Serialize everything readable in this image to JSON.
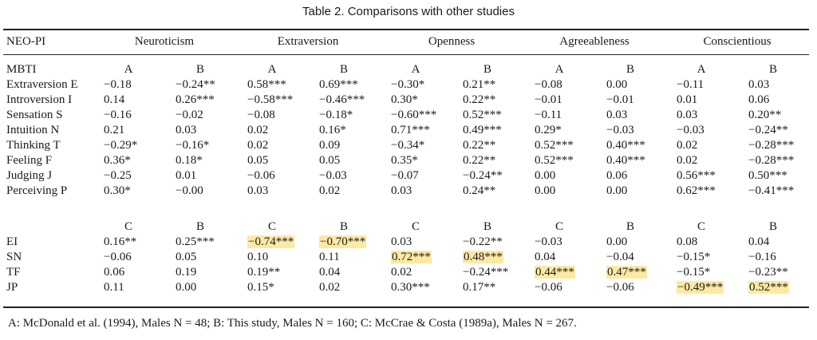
{
  "caption": "Table 2. Comparisons with other studies",
  "header": {
    "row_label": "NEO-PI",
    "factors": [
      "Neuroticism",
      "Extraversion",
      "Openness",
      "Agreeableness",
      "Conscientious"
    ]
  },
  "section1": {
    "label": "MBTI",
    "subcols": [
      "A",
      "B",
      "A",
      "B",
      "A",
      "B",
      "A",
      "B",
      "A",
      "B"
    ],
    "rows": [
      {
        "label": "Extraversion E",
        "values": [
          "−0.18",
          "−0.24**",
          "0.58***",
          "0.69***",
          "−0.30*",
          "0.21**",
          "−0.08",
          "0.00",
          "−0.11",
          "0.03"
        ]
      },
      {
        "label": "Introversion I",
        "values": [
          "0.14",
          "0.26***",
          "−0.58***",
          "−0.46***",
          "0.30*",
          "0.22**",
          "−0.01",
          "−0.01",
          "0.01",
          "0.06"
        ]
      },
      {
        "label": "Sensation S",
        "values": [
          "−0.16",
          "−0.02",
          "−0.08",
          "−0.18*",
          "−0.60***",
          "0.52***",
          "−0.11",
          "0.03",
          "0.03",
          "0.20**"
        ]
      },
      {
        "label": "Intuition N",
        "values": [
          "0.21",
          "0.03",
          "0.02",
          "0.16*",
          "0.71***",
          "0.49***",
          "0.29*",
          "−0.03",
          "−0.03",
          "−0.24**"
        ]
      },
      {
        "label": "Thinking T",
        "values": [
          "−0.29*",
          "−0.16*",
          "0.02",
          "0.09",
          "−0.34*",
          "0.22**",
          "0.52***",
          "0.40***",
          "0.02",
          "−0.28***"
        ]
      },
      {
        "label": "Feeling F",
        "values": [
          "0.36*",
          "0.18*",
          "0.05",
          "0.05",
          "0.35*",
          "0.22**",
          "0.52***",
          "0.40***",
          "0.02",
          "−0.28***"
        ]
      },
      {
        "label": "Judging J",
        "values": [
          "−0.25",
          "0.01",
          "−0.06",
          "−0.03",
          "−0.07",
          "−0.24**",
          "0.00",
          "0.06",
          "0.56***",
          "0.50***"
        ]
      },
      {
        "label": "Perceiving P",
        "values": [
          "0.30*",
          "−0.00",
          "0.03",
          "0.02",
          "0.03",
          "0.24**",
          "0.00",
          "0.00",
          "0.62***",
          "−0.41***"
        ]
      }
    ]
  },
  "section2": {
    "subcols": [
      "C",
      "B",
      "C",
      "B",
      "C",
      "B",
      "C",
      "B",
      "C",
      "B"
    ],
    "rows": [
      {
        "label": "EI",
        "values": [
          "0.16**",
          "0.25***",
          "−0.74***",
          "−0.70***",
          "0.03",
          "−0.22**",
          "−0.03",
          "0.00",
          "0.08",
          "0.04"
        ],
        "highlight": [
          2,
          3
        ]
      },
      {
        "label": "SN",
        "values": [
          "−0.06",
          "0.05",
          "0.10",
          "0.11",
          "0.72***",
          "0.48***",
          "0.04",
          "−0.04",
          "−0.15*",
          "−0.16"
        ],
        "highlight": [
          4,
          5
        ]
      },
      {
        "label": "TF",
        "values": [
          "0.06",
          "0.19",
          "0.19**",
          "0.04",
          "0.02",
          "−0.24***",
          "0.44***",
          "0.47***",
          "−0.15*",
          "−0.23**"
        ],
        "highlight": [
          6,
          7
        ]
      },
      {
        "label": "JP",
        "values": [
          "0.11",
          "0.00",
          "0.15*",
          "0.02",
          "0.30***",
          "0.17**",
          "−0.06",
          "−0.06",
          "−0.49***",
          "0.52***"
        ],
        "highlight": [
          8,
          9
        ]
      }
    ]
  },
  "footnote": "A: McDonald et al. (1994), Males N = 48; B: This study, Males N = 160; C: McCrae & Costa (1989a), Males N = 267.",
  "colors": {
    "highlight": "#fde9a4",
    "rule": "#222222"
  }
}
